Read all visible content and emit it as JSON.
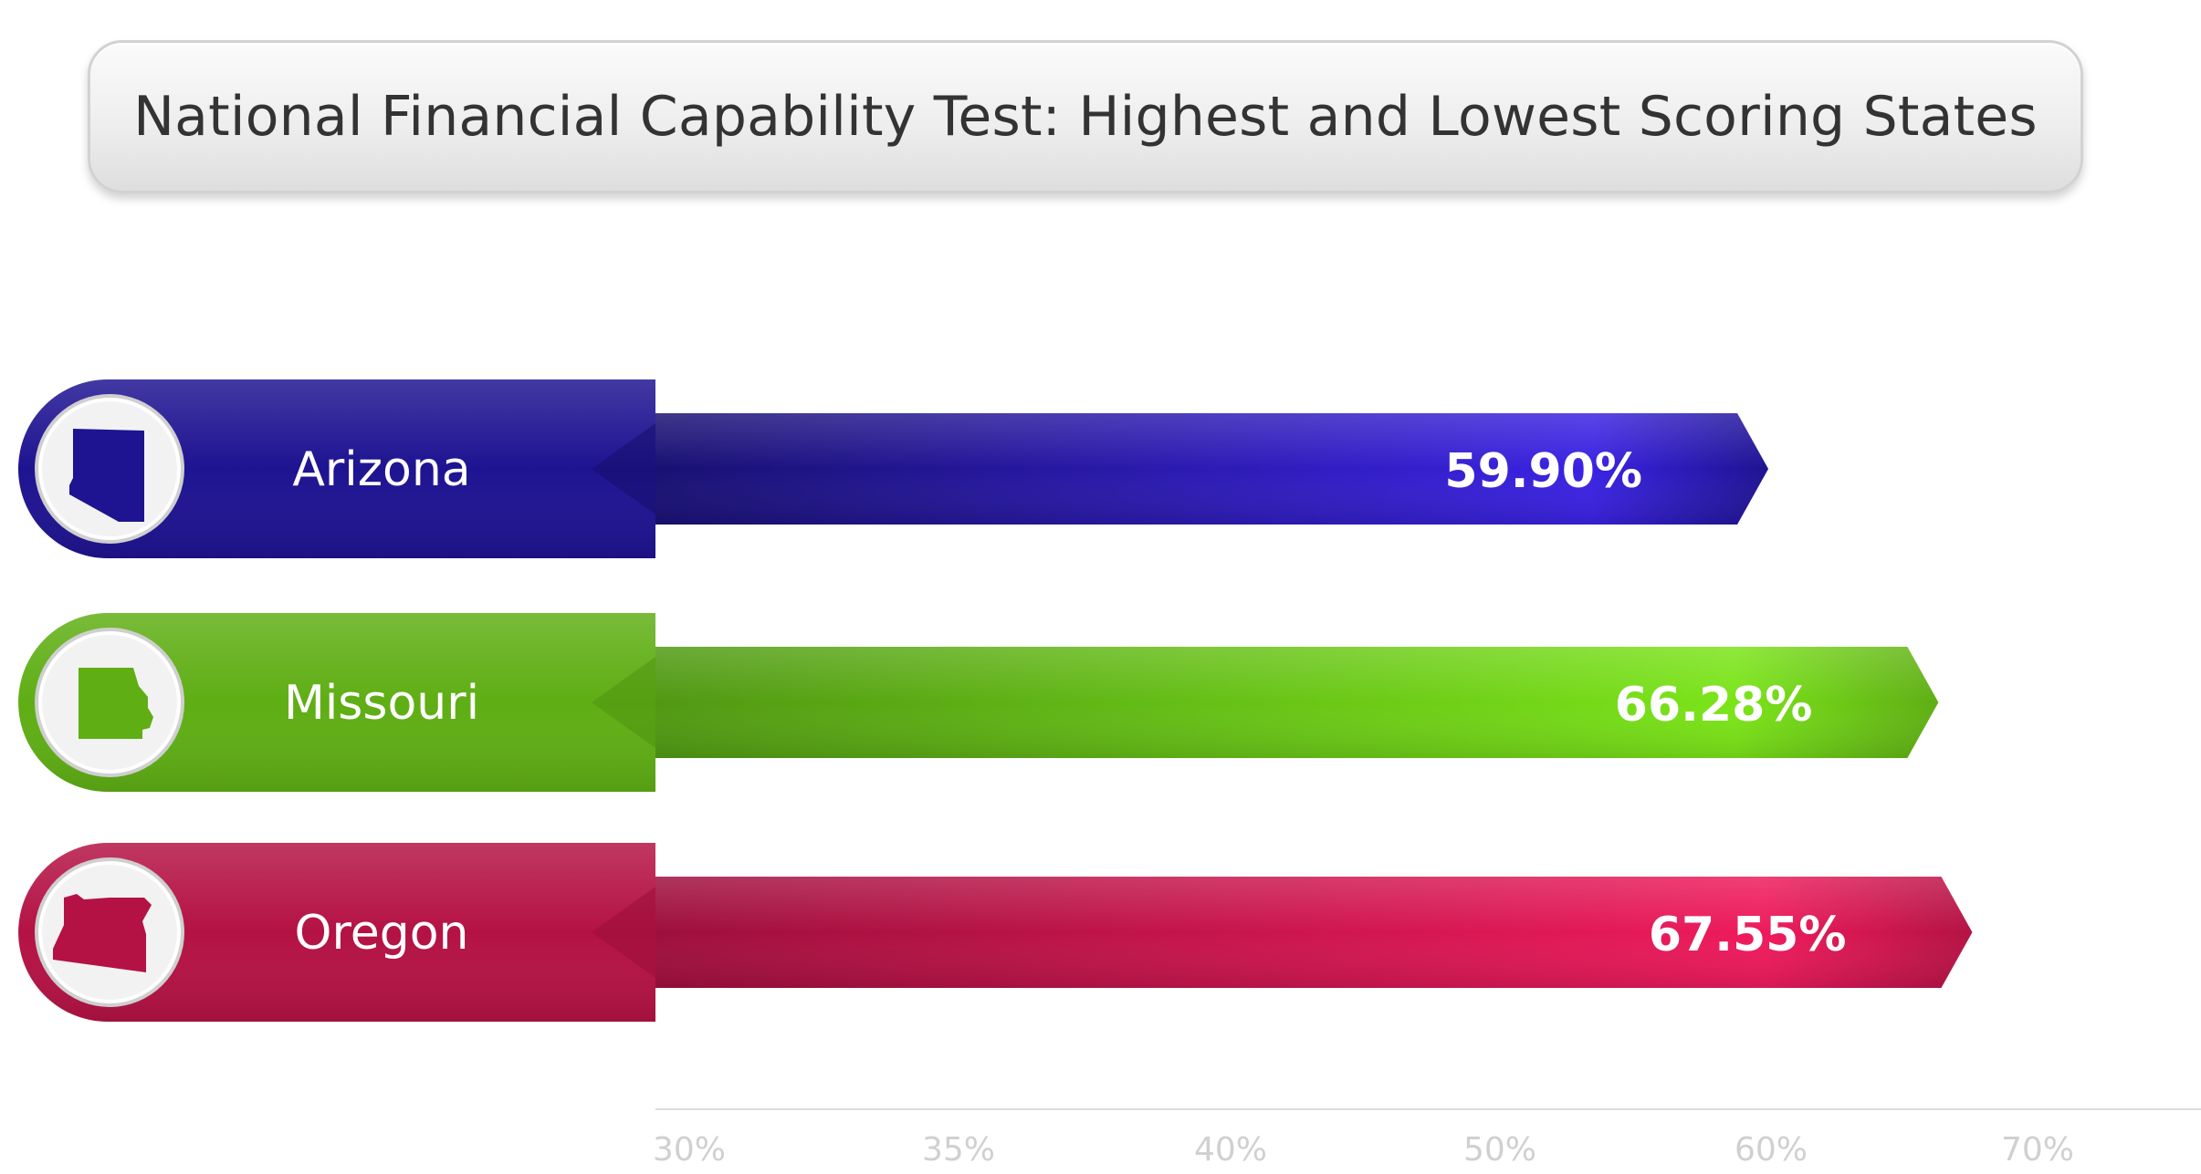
{
  "chart_data": {
    "type": "bar",
    "orientation": "horizontal",
    "title": "National Financial Capability Test: Highest and Lowest Scoring States",
    "categories": [
      "Arizona",
      "Missouri",
      "Oregon"
    ],
    "values": [
      59.9,
      66.28,
      67.55
    ],
    "value_labels": [
      "59.90%",
      "66.28%",
      "67.55%"
    ],
    "xlim": [
      30,
      70
    ],
    "x_ticks": [
      30,
      35,
      40,
      50,
      60,
      70
    ],
    "x_tick_labels": [
      "30%",
      "35%",
      "40%",
      "50%",
      "60%",
      "70%"
    ],
    "grid": false,
    "legend": "none",
    "colors": [
      {
        "dark": "#160f6b",
        "mid": "#1e1391",
        "light": "#3a22e2"
      },
      {
        "dark": "#4e9412",
        "mid": "#5fae14",
        "light": "#7ae418"
      },
      {
        "dark": "#9a0e3b",
        "mid": "#b41244",
        "light": "#ee1a5c"
      }
    ],
    "icons": [
      "arizona-state-icon",
      "missouri-state-icon",
      "oregon-state-icon"
    ]
  }
}
